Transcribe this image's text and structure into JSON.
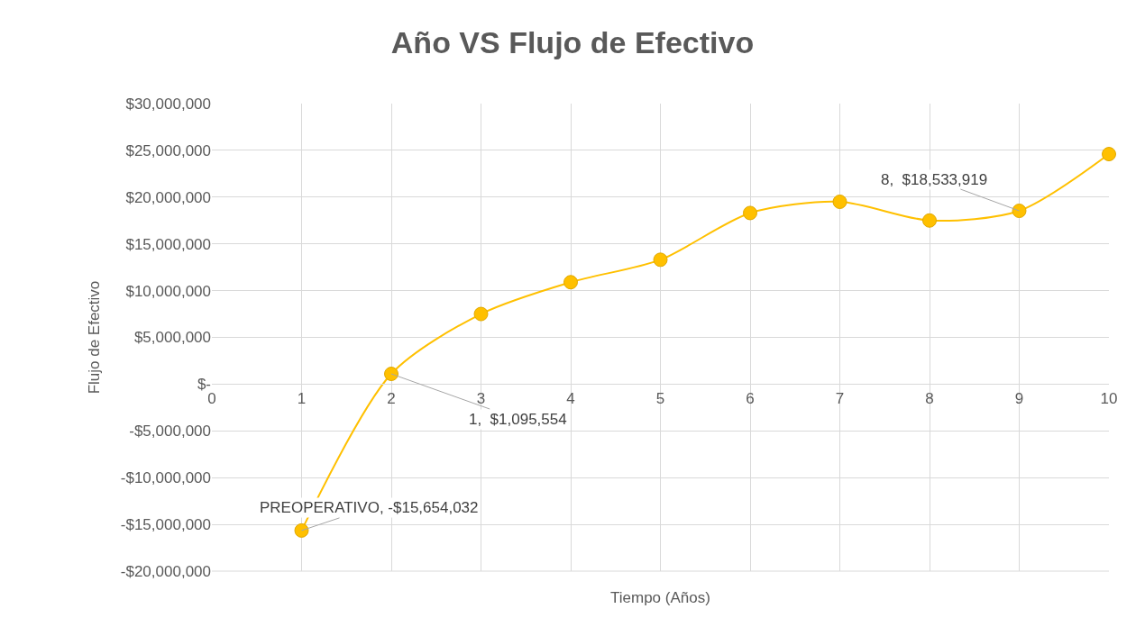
{
  "chart_data": {
    "type": "line",
    "title": "Año VS Flujo de Efectivo",
    "xlabel": "Tiempo (Años)",
    "ylabel": "Flujo de Efectivo",
    "x": [
      1,
      2,
      3,
      4,
      5,
      6,
      7,
      8,
      9,
      10
    ],
    "series": [
      {
        "color": "#ffc000",
        "values": [
          -15654032,
          1095554,
          7500000,
          10900000,
          13300000,
          18300000,
          19500000,
          17500000,
          18533919,
          24600000
        ]
      }
    ],
    "xlim": [
      0,
      10
    ],
    "xticks": [
      0,
      1,
      2,
      3,
      4,
      5,
      6,
      7,
      8,
      9,
      10
    ],
    "ylim": [
      -20000000,
      30000000
    ],
    "yticks": [
      {
        "value": -20000000,
        "label": "-$20,000,000"
      },
      {
        "value": -15000000,
        "label": "-$15,000,000"
      },
      {
        "value": -10000000,
        "label": "-$10,000,000"
      },
      {
        "value": -5000000,
        "label": "-$5,000,000"
      },
      {
        "value": 0,
        "label": "$-"
      },
      {
        "value": 5000000,
        "label": "$5,000,000"
      },
      {
        "value": 10000000,
        "label": "$10,000,000"
      },
      {
        "value": 15000000,
        "label": "$15,000,000"
      },
      {
        "value": 20000000,
        "label": "$20,000,000"
      },
      {
        "value": 25000000,
        "label": "$25,000,000"
      },
      {
        "value": 30000000,
        "label": "$30,000,000"
      }
    ],
    "annotations": [
      {
        "text": "PREOPERATIVO, -$15,654,032",
        "x": 1,
        "y": -15654032
      },
      {
        "text": "1,  $1,095,554",
        "x": 2,
        "y": 1095554
      },
      {
        "text": "8,  $18,533,919",
        "x": 9,
        "y": 18533919
      }
    ],
    "grid": true,
    "marker": "circle",
    "line_style": "solid"
  }
}
